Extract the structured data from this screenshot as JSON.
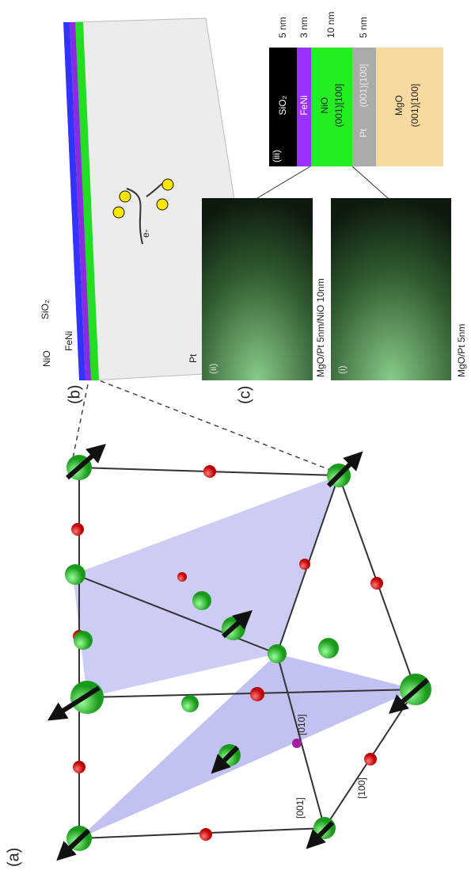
{
  "panel_a": {
    "label": "(a)",
    "directions": [
      "[001]",
      "[010]",
      "[100]"
    ]
  },
  "panel_b": {
    "label": "(b)",
    "layers": [
      "NiO",
      "FeNi",
      "SiO₂"
    ],
    "substrate": "Pt",
    "electron": "e-"
  },
  "panel_c": {
    "label": "(c)",
    "images": [
      {
        "tag": "(ii)",
        "caption": "MgO/Pt 5nm/NiO 10nm"
      },
      {
        "tag": "(i)",
        "caption": "MgO/Pt 5nm"
      }
    ],
    "stack": {
      "tag": "(iii)",
      "layers": [
        {
          "thickness": "5 nm",
          "name": "SiO₂"
        },
        {
          "thickness": "3 nm",
          "name": "FeNi"
        },
        {
          "thickness": "10 nm",
          "name": "NiO",
          "orientation": "(001)[100]"
        },
        {
          "thickness": "5 nm",
          "name": "Pt",
          "orientation": "(001)[100]"
        },
        {
          "name": "MgO",
          "orientation": "(001)[100]"
        }
      ]
    }
  }
}
